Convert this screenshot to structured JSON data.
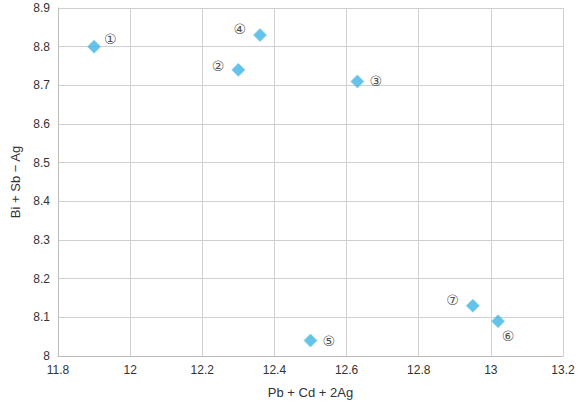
{
  "chart_data": {
    "type": "scatter",
    "x_label": "Pb + Cd + 2Ag",
    "y_label": "Bi + Sb − Ag",
    "x": [
      11.9,
      12.3,
      12.63,
      12.36,
      12.5,
      13.02,
      12.95
    ],
    "values": [
      8.8,
      8.74,
      8.71,
      8.83,
      8.04,
      8.09,
      8.13
    ],
    "labels": [
      "①",
      "②",
      "③",
      "④",
      "⑤",
      "⑥",
      "⑦"
    ],
    "color": "#3fb4e4",
    "marker": "diamond",
    "xlim": [
      11.8,
      13.2
    ],
    "xticks": [
      11.8,
      12,
      12.2,
      12.4,
      12.6,
      12.8,
      13,
      13.2
    ],
    "ylim": [
      8,
      8.9
    ],
    "yticks": [
      8,
      8.1,
      8.2,
      8.3,
      8.4,
      8.5,
      8.6,
      8.7,
      8.8,
      8.9
    ],
    "grid": true
  }
}
